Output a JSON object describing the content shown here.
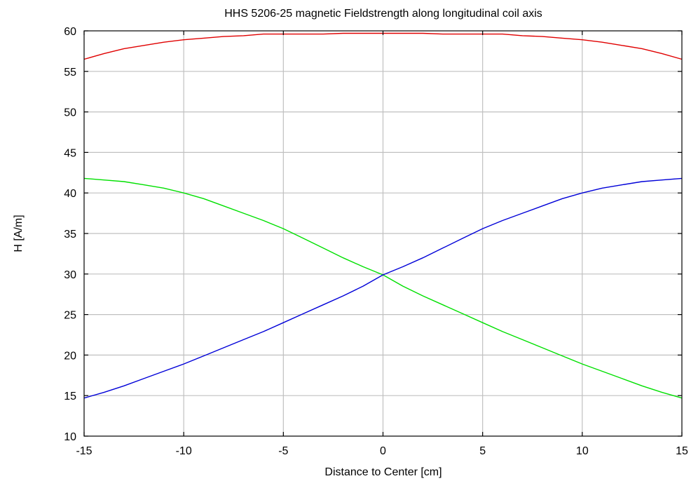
{
  "chart_data": {
    "type": "line",
    "title": "HHS 5206-25 magnetic Fieldstrength along longitudinal coil axis",
    "xlabel": "Distance to Center [cm]",
    "ylabel": "H [A/m]",
    "xlim": [
      -15,
      15
    ],
    "ylim": [
      10,
      60
    ],
    "xticks": [
      -15,
      -10,
      -5,
      0,
      5,
      10,
      15
    ],
    "yticks": [
      10,
      15,
      20,
      25,
      30,
      35,
      40,
      45,
      50,
      55,
      60
    ],
    "grid": true,
    "legend": "none",
    "series": [
      {
        "color": "#e00000",
        "x": [
          -15,
          -14,
          -13,
          -12,
          -11,
          -10,
          -9,
          -8,
          -7,
          -6,
          -5,
          -4,
          -3,
          -2,
          -1,
          0,
          1,
          2,
          3,
          4,
          5,
          6,
          7,
          8,
          9,
          10,
          11,
          12,
          13,
          14,
          15
        ],
        "y": [
          56.5,
          57.2,
          57.8,
          58.2,
          58.6,
          58.9,
          59.1,
          59.3,
          59.4,
          59.6,
          59.6,
          59.6,
          59.6,
          59.7,
          59.7,
          59.7,
          59.7,
          59.7,
          59.6,
          59.6,
          59.6,
          59.6,
          59.4,
          59.3,
          59.1,
          58.9,
          58.6,
          58.2,
          57.8,
          57.2,
          56.5
        ]
      },
      {
        "color": "#00e000",
        "x": [
          -15,
          -14,
          -13,
          -12,
          -11,
          -10,
          -9,
          -8,
          -7,
          -6,
          -5,
          -4,
          -3,
          -2,
          -1,
          0,
          1,
          2,
          3,
          4,
          5,
          6,
          7,
          8,
          9,
          10,
          11,
          12,
          13,
          14,
          15
        ],
        "y": [
          41.8,
          41.6,
          41.4,
          41.0,
          40.6,
          40.0,
          39.3,
          38.4,
          37.5,
          36.6,
          35.6,
          34.4,
          33.2,
          32.0,
          30.9,
          29.9,
          28.5,
          27.3,
          26.2,
          25.1,
          24.0,
          22.9,
          21.9,
          20.9,
          19.9,
          18.9,
          18.0,
          17.1,
          16.2,
          15.4,
          14.7
        ]
      },
      {
        "color": "#0000d8",
        "x": [
          -15,
          -14,
          -13,
          -12,
          -11,
          -10,
          -9,
          -8,
          -7,
          -6,
          -5,
          -4,
          -3,
          -2,
          -1,
          0,
          1,
          2,
          3,
          4,
          5,
          6,
          7,
          8,
          9,
          10,
          11,
          12,
          13,
          14,
          15
        ],
        "y": [
          14.7,
          15.4,
          16.2,
          17.1,
          18.0,
          18.9,
          19.9,
          20.9,
          21.9,
          22.9,
          24.0,
          25.1,
          26.2,
          27.3,
          28.5,
          29.9,
          30.9,
          32.0,
          33.2,
          34.4,
          35.6,
          36.6,
          37.5,
          38.4,
          39.3,
          40.0,
          40.6,
          41.0,
          41.4,
          41.6,
          41.8
        ]
      }
    ]
  }
}
